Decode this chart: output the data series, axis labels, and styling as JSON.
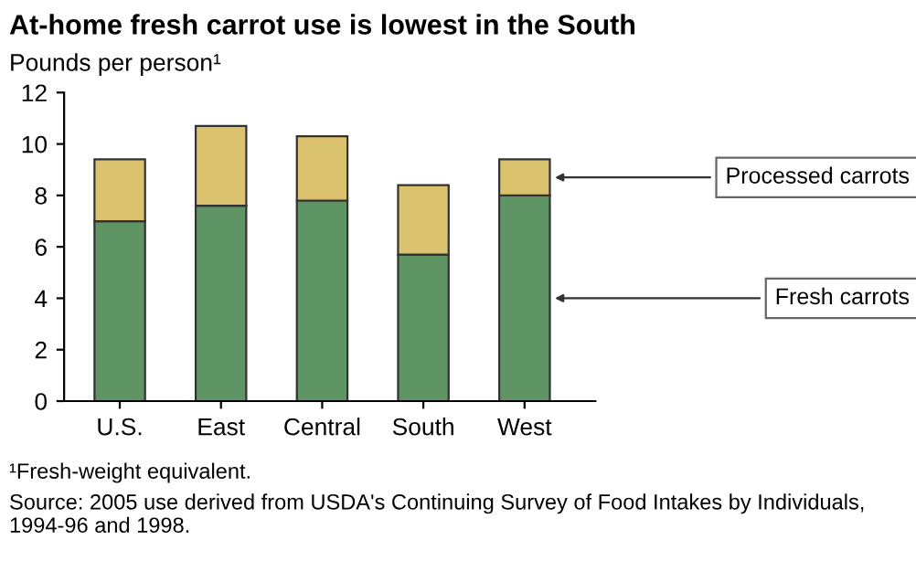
{
  "chart_data": {
    "type": "bar",
    "title": "At-home fresh carrot use is lowest in the South",
    "ylabel": "Pounds per person¹",
    "categories": [
      "U.S.",
      "East",
      "Central",
      "South",
      "West"
    ],
    "series": [
      {
        "name": "Fresh carrots",
        "color": "#5f9464",
        "values": [
          7.0,
          7.6,
          7.8,
          5.7,
          8.0
        ]
      },
      {
        "name": "Processed carrots",
        "color": "#dbc26e",
        "values": [
          2.4,
          3.1,
          2.5,
          2.7,
          1.4
        ]
      }
    ],
    "stacked": true,
    "ylim": [
      0,
      12
    ],
    "yticks": [
      0,
      2,
      4,
      6,
      8,
      10,
      12
    ],
    "grid": false,
    "legend": "right",
    "annotations": [
      "¹Fresh-weight equivalent.",
      "Source: 2005 use derived from USDA's Continuing Survey of Food Intakes by Individuals, 1994-96 and 1998."
    ]
  }
}
